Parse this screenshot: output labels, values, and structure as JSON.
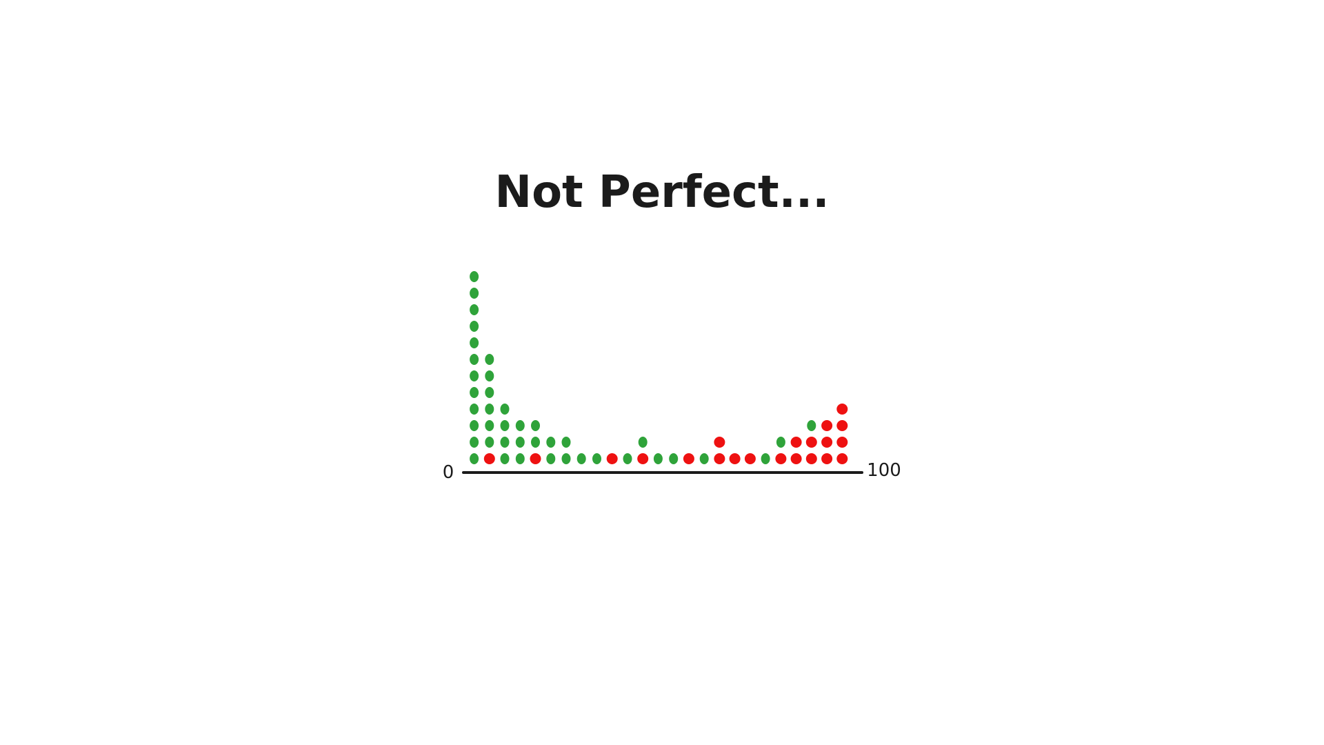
{
  "chart_data": {
    "type": "dot-plot",
    "title": "Not Perfect...",
    "xlim": [
      0,
      100
    ],
    "x_tick_labels": [
      "0",
      "100"
    ],
    "grid": false,
    "legend": "none",
    "colors": {
      "green": "#2fa33a",
      "red": "#ee1111",
      "axis": "#1b1b1b",
      "title": "#1b1b1b"
    },
    "columns": [
      {
        "x": 1,
        "dots": [
          "green",
          "green",
          "green",
          "green",
          "green",
          "green",
          "green",
          "green",
          "green",
          "green",
          "green",
          "green"
        ]
      },
      {
        "x": 5,
        "dots": [
          "red",
          "green",
          "green",
          "green",
          "green",
          "green",
          "green"
        ]
      },
      {
        "x": 9,
        "dots": [
          "green",
          "green",
          "green",
          "green"
        ]
      },
      {
        "x": 13,
        "dots": [
          "green",
          "green",
          "green"
        ]
      },
      {
        "x": 17,
        "dots": [
          "red",
          "green",
          "green"
        ]
      },
      {
        "x": 21,
        "dots": [
          "green",
          "green"
        ]
      },
      {
        "x": 25,
        "dots": [
          "green",
          "green"
        ]
      },
      {
        "x": 29,
        "dots": [
          "green"
        ]
      },
      {
        "x": 33,
        "dots": [
          "green"
        ]
      },
      {
        "x": 37,
        "dots": [
          "red"
        ]
      },
      {
        "x": 41,
        "dots": [
          "green"
        ]
      },
      {
        "x": 45,
        "dots": [
          "red",
          "green"
        ]
      },
      {
        "x": 49,
        "dots": [
          "green"
        ]
      },
      {
        "x": 53,
        "dots": [
          "green"
        ]
      },
      {
        "x": 57,
        "dots": [
          "red"
        ]
      },
      {
        "x": 61,
        "dots": [
          "green"
        ]
      },
      {
        "x": 65,
        "dots": [
          "red",
          "red"
        ]
      },
      {
        "x": 69,
        "dots": [
          "red"
        ]
      },
      {
        "x": 73,
        "dots": [
          "red"
        ]
      },
      {
        "x": 77,
        "dots": [
          "green"
        ]
      },
      {
        "x": 81,
        "dots": [
          "red",
          "green"
        ]
      },
      {
        "x": 85,
        "dots": [
          "red",
          "red"
        ]
      },
      {
        "x": 89,
        "dots": [
          "red",
          "red",
          "green"
        ]
      },
      {
        "x": 93,
        "dots": [
          "red",
          "red",
          "red"
        ]
      },
      {
        "x": 97,
        "dots": [
          "red",
          "red",
          "red",
          "red"
        ]
      }
    ]
  }
}
